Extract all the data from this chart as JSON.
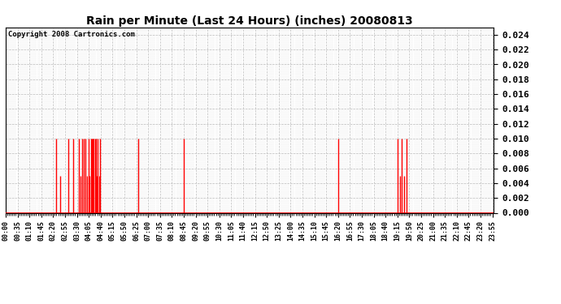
{
  "title": "Rain per Minute (Last 24 Hours) (inches) 20080813",
  "copyright": "Copyright 2008 Cartronics.com",
  "ylim": [
    0.0,
    0.025
  ],
  "yticks": [
    0.0,
    0.002,
    0.004,
    0.006,
    0.008,
    0.01,
    0.012,
    0.014,
    0.016,
    0.018,
    0.02,
    0.022,
    0.024
  ],
  "background_color": "#ffffff",
  "bar_color": "#ff0000",
  "baseline_color": "#ff0000",
  "grid_color": "#bbbbbb",
  "rain_events": [
    {
      "minute": 150,
      "value": 0.01
    },
    {
      "minute": 162,
      "value": 0.005
    },
    {
      "minute": 185,
      "value": 0.01
    },
    {
      "minute": 200,
      "value": 0.01
    },
    {
      "minute": 215,
      "value": 0.01
    },
    {
      "minute": 220,
      "value": 0.005
    },
    {
      "minute": 225,
      "value": 0.01
    },
    {
      "minute": 230,
      "value": 0.01
    },
    {
      "minute": 235,
      "value": 0.01
    },
    {
      "minute": 240,
      "value": 0.005
    },
    {
      "minute": 245,
      "value": 0.01
    },
    {
      "minute": 248,
      "value": 0.005
    },
    {
      "minute": 251,
      "value": 0.01
    },
    {
      "minute": 254,
      "value": 0.01
    },
    {
      "minute": 257,
      "value": 0.01
    },
    {
      "minute": 260,
      "value": 0.01
    },
    {
      "minute": 263,
      "value": 0.01
    },
    {
      "minute": 266,
      "value": 0.01
    },
    {
      "minute": 269,
      "value": 0.005
    },
    {
      "minute": 272,
      "value": 0.01
    },
    {
      "minute": 275,
      "value": 0.005
    },
    {
      "minute": 278,
      "value": 0.01
    },
    {
      "minute": 390,
      "value": 0.01
    },
    {
      "minute": 525,
      "value": 0.01
    },
    {
      "minute": 980,
      "value": 0.01
    },
    {
      "minute": 1155,
      "value": 0.01
    },
    {
      "minute": 1162,
      "value": 0.005
    },
    {
      "minute": 1168,
      "value": 0.01
    },
    {
      "minute": 1175,
      "value": 0.005
    },
    {
      "minute": 1182,
      "value": 0.01
    }
  ],
  "x_tick_interval": 35,
  "total_minutes": 1439
}
